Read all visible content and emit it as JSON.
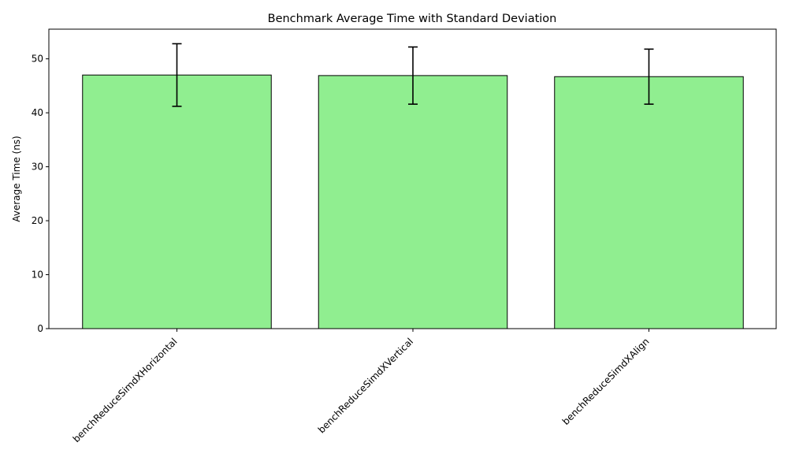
{
  "chart_data": {
    "type": "bar",
    "title": "Benchmark Average Time with Standard Deviation",
    "xlabel": "",
    "ylabel": "Average Time (ns)",
    "categories": [
      "benchReduceSimdXHorizontal",
      "benchReduceSimdXVertical",
      "benchReduceSimdXAlign"
    ],
    "values": [
      47.0,
      46.9,
      46.7
    ],
    "errors": [
      5.8,
      5.3,
      5.1
    ],
    "ylim": [
      0,
      55.5
    ],
    "yticks": [
      0,
      10,
      20,
      30,
      40,
      50
    ],
    "grid": false,
    "bar_color": "#90ee90",
    "edge_color": "#000000"
  }
}
